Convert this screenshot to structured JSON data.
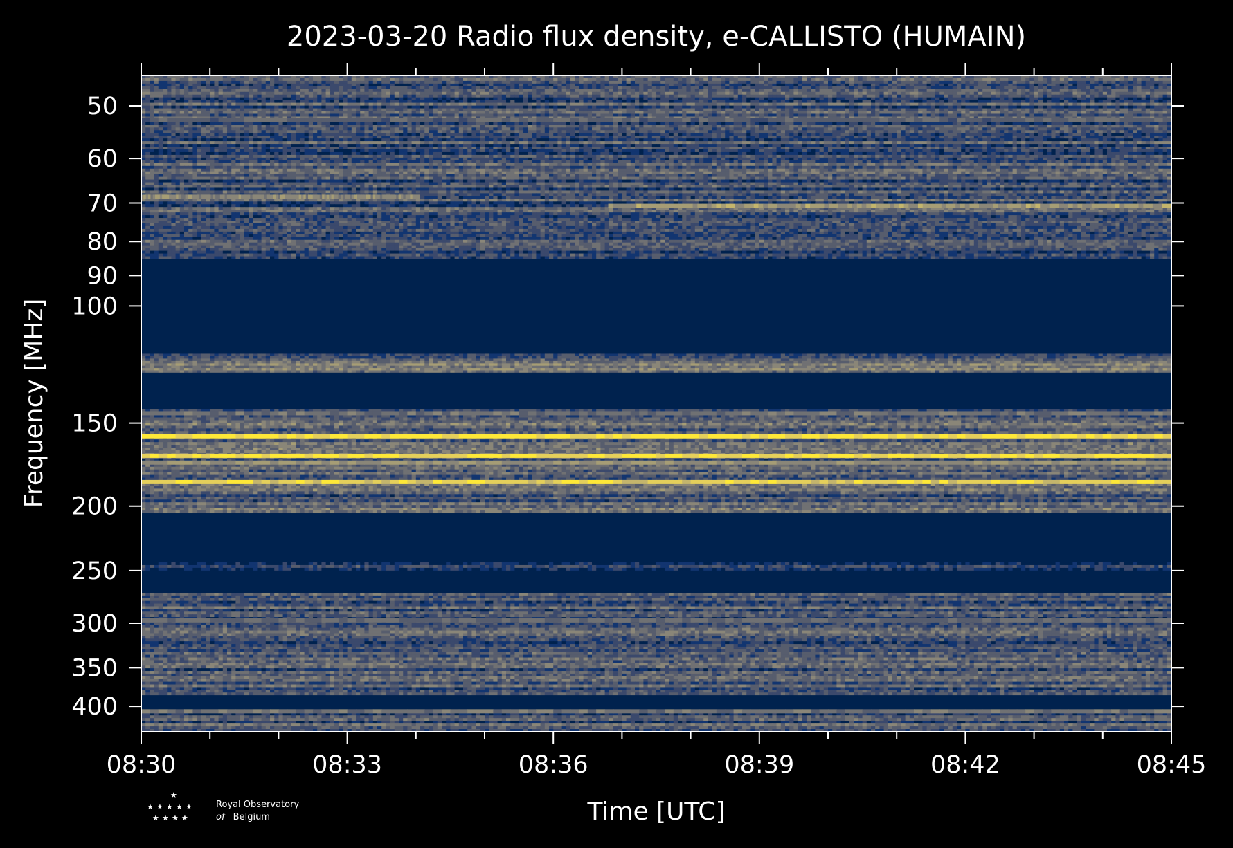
{
  "chart_data": {
    "type": "heatmap",
    "title": "2023-03-20 Radio flux density, e-CALLISTO (HUMAIN)",
    "xlabel": "Time [UTC]",
    "ylabel": "Frequency [MHz]",
    "x_ticks": [
      "08:30",
      "08:33",
      "08:36",
      "08:39",
      "08:42",
      "08:45"
    ],
    "x_range_minutes": [
      0,
      15
    ],
    "y_scale": "log",
    "y_ticks": [
      50,
      60,
      70,
      80,
      90,
      100,
      150,
      200,
      250,
      300,
      350,
      400
    ],
    "y_range": [
      45,
      437
    ],
    "colormap": [
      "#00224e",
      "#123570",
      "#3b496c",
      "#575d6d",
      "#707173",
      "#8a8678",
      "#a69d75",
      "#c4b56c",
      "#e4cf5b",
      "#fee838"
    ],
    "bands": [
      {
        "f0": 45,
        "f1": 85,
        "level": 0.28
      },
      {
        "f0": 85,
        "f1": 118,
        "level": 0.0
      },
      {
        "f0": 118,
        "f1": 122,
        "level": 0.3
      },
      {
        "f0": 122,
        "f1": 126,
        "level": 0.55
      },
      {
        "f0": 126,
        "f1": 143,
        "level": 0.0
      },
      {
        "f0": 143,
        "f1": 205,
        "level": 0.35
      },
      {
        "f0": 205,
        "f1": 243,
        "level": 0.0
      },
      {
        "f0": 243,
        "f1": 250,
        "level": 0.2
      },
      {
        "f0": 250,
        "f1": 270,
        "level": 0.0
      },
      {
        "f0": 270,
        "f1": 385,
        "level": 0.28
      },
      {
        "f0": 385,
        "f1": 405,
        "level": 0.0
      },
      {
        "f0": 405,
        "f1": 437,
        "level": 0.3
      }
    ],
    "lines": [
      {
        "freq": 68.5,
        "t0": 0,
        "t1": 4.05,
        "level": 0.55
      },
      {
        "freq": 70.7,
        "t0": 6.8,
        "t1": 15,
        "level": 0.65
      },
      {
        "freq": 52.5,
        "t0": 0,
        "t1": 15,
        "level": 0.35
      },
      {
        "freq": 157,
        "t0": 0,
        "t1": 15,
        "level": 0.97
      },
      {
        "freq": 168,
        "t0": 0,
        "t1": 15,
        "level": 0.95
      },
      {
        "freq": 172,
        "t0": 0,
        "t1": 15,
        "level": 0.6
      },
      {
        "freq": 184,
        "t0": 0,
        "t1": 15,
        "level": 0.9
      },
      {
        "freq": 145,
        "t0": 0,
        "t1": 15,
        "level": 0.45
      },
      {
        "freq": 297,
        "t0": 0,
        "t1": 15,
        "level": 0.4
      },
      {
        "freq": 407,
        "t0": 0,
        "t1": 15,
        "level": 0.45
      }
    ]
  },
  "logo": {
    "line1": "Royal Observatory",
    "line2_italic": "of",
    "line2": "Belgium"
  }
}
